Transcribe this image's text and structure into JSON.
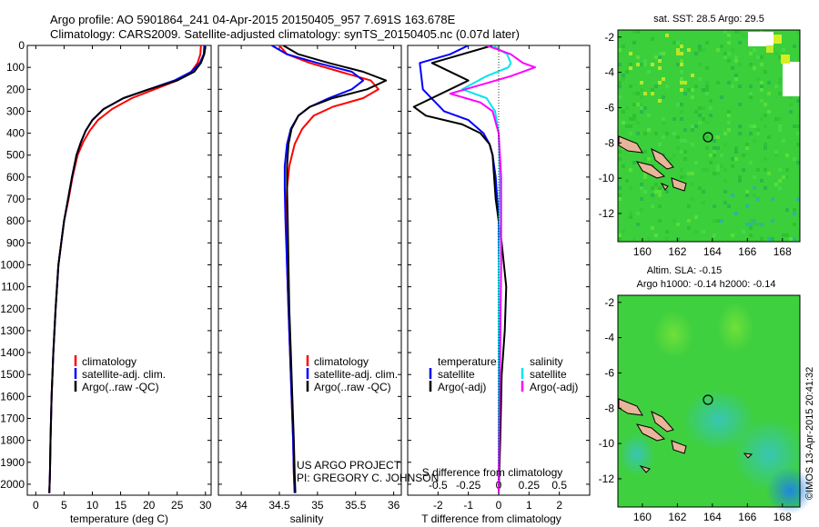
{
  "header": {
    "line1": "Argo profile: AO 5901864_241 04-Apr-2015 20150405_957 7.691S 163.678E",
    "line2": "Climatology: CARS2009. Satellite-adjusted climatology: synTS_20150405.nc (0.07d later)"
  },
  "credit": {
    "line1": "US ARGO PROJECT",
    "line2": "PI: GREGORY C. JOHNSON"
  },
  "imos_stamp": "©IMOS 13-Apr-2015 20:41:32",
  "colors": {
    "climatology": "#ff0000",
    "satellite": "#0000ff",
    "argo": "#000000",
    "sal_satellite": "#00e5ee",
    "sal_argo": "#ff00ff",
    "map_green": "#3bd23b",
    "land": "#e8b49a"
  },
  "chart_data": [
    {
      "type": "line",
      "id": "temperature",
      "xlabel": "temperature (deg C)",
      "ylabel": "",
      "xlim": [
        -1.5,
        31
      ],
      "ylim": [
        2050,
        0
      ],
      "xticks": [
        0,
        5,
        10,
        15,
        20,
        25,
        30
      ],
      "yticks": [
        0,
        100,
        200,
        300,
        400,
        500,
        600,
        700,
        800,
        900,
        1000,
        1100,
        1200,
        1300,
        1400,
        1500,
        1600,
        1700,
        1800,
        1900,
        2000
      ],
      "legend": [
        "climatology",
        "satellite-adj. clim.",
        "Argo(..raw -QC)"
      ],
      "series": [
        {
          "name": "climatology",
          "color": "#ff0000",
          "x": [
            29.2,
            29.1,
            28.6,
            27.5,
            25.0,
            21.0,
            17.0,
            13.5,
            11.0,
            9.5,
            8.4,
            7.4,
            6.5,
            5.8,
            5.0,
            4.5,
            4.0,
            3.5,
            3.1,
            2.8,
            2.6,
            2.5,
            2.4
          ],
          "y": [
            0,
            40,
            80,
            120,
            160,
            200,
            240,
            290,
            340,
            390,
            440,
            500,
            600,
            700,
            800,
            900,
            1000,
            1200,
            1400,
            1600,
            1800,
            1950,
            2040
          ]
        },
        {
          "name": "satellite-adj. clim.",
          "color": "#0000ff",
          "x": [
            29.8,
            29.7,
            29.0,
            27.5,
            24.5,
            20.0,
            15.5,
            12.0,
            10.0,
            8.8,
            8.0,
            7.2,
            6.4,
            5.7,
            5.0,
            4.5,
            4.0,
            3.5,
            3.1,
            2.8,
            2.6,
            2.5,
            2.4
          ],
          "y": [
            0,
            40,
            80,
            120,
            160,
            200,
            240,
            290,
            340,
            390,
            440,
            500,
            600,
            700,
            800,
            900,
            1000,
            1200,
            1400,
            1600,
            1800,
            1950,
            2040
          ]
        },
        {
          "name": "Argo(..raw -QC)",
          "color": "#000000",
          "x": [
            30.0,
            29.8,
            29.2,
            28.0,
            25.0,
            20.0,
            15.5,
            12.0,
            10.0,
            8.8,
            8.0,
            7.2,
            6.4,
            5.7,
            5.0,
            4.5,
            4.0,
            3.5,
            3.1,
            2.8,
            2.6,
            2.5,
            2.4
          ],
          "y": [
            5,
            40,
            80,
            120,
            160,
            200,
            240,
            290,
            340,
            390,
            440,
            500,
            600,
            700,
            800,
            900,
            1000,
            1200,
            1400,
            1600,
            1800,
            1950,
            2040
          ]
        }
      ]
    },
    {
      "type": "line",
      "id": "salinity",
      "xlabel": "salinity",
      "xlim": [
        33.7,
        36.1
      ],
      "ylim": [
        2050,
        0
      ],
      "xticks": [
        34,
        34.5,
        35,
        35.5,
        36
      ],
      "legend": [
        "climatology",
        "satellite-adj. clim.",
        "Argo(..raw -QC)"
      ],
      "series": [
        {
          "name": "climatology",
          "color": "#ff0000",
          "x": [
            34.5,
            34.6,
            34.9,
            35.3,
            35.7,
            35.8,
            35.6,
            35.2,
            34.95,
            34.8,
            34.7,
            34.63,
            34.6,
            34.59,
            34.6,
            34.62,
            34.64,
            34.66,
            34.68,
            34.69,
            34.7
          ],
          "y": [
            0,
            40,
            80,
            120,
            160,
            200,
            240,
            280,
            320,
            380,
            450,
            550,
            650,
            800,
            1000,
            1200,
            1400,
            1600,
            1800,
            1950,
            2040
          ]
        },
        {
          "name": "satellite-adj. clim.",
          "color": "#0000ff",
          "x": [
            34.4,
            34.6,
            35.0,
            35.45,
            35.6,
            35.45,
            35.15,
            34.9,
            34.75,
            34.65,
            34.6,
            34.57,
            34.57,
            34.58,
            34.6,
            34.62,
            34.64,
            34.66,
            34.68,
            34.69,
            34.7
          ],
          "y": [
            0,
            40,
            80,
            120,
            160,
            200,
            240,
            280,
            320,
            380,
            450,
            550,
            650,
            800,
            1000,
            1200,
            1400,
            1600,
            1800,
            1950,
            2040
          ]
        },
        {
          "name": "Argo(..raw -QC)",
          "color": "#000000",
          "x": [
            34.55,
            34.75,
            35.15,
            35.6,
            35.9,
            35.65,
            35.2,
            34.9,
            34.75,
            34.66,
            34.62,
            34.6,
            34.6,
            34.61,
            34.62,
            34.63,
            34.65,
            34.67,
            34.69,
            34.7,
            34.71
          ],
          "y": [
            0,
            40,
            80,
            120,
            160,
            200,
            240,
            280,
            320,
            380,
            450,
            550,
            650,
            800,
            1000,
            1200,
            1400,
            1600,
            1800,
            1950,
            2040
          ]
        }
      ]
    },
    {
      "type": "line",
      "id": "difference",
      "xlabel": "T difference from climatology",
      "xlabel_top": "S difference from climatology",
      "xlim_T": [
        -3.0,
        3.0
      ],
      "xticks_T": [
        -2,
        -1,
        0,
        1,
        2
      ],
      "xticks_S": [
        "-0.5",
        "-0.25",
        "0",
        "0.25",
        "0.5"
      ],
      "xlim_S": [
        -0.75,
        0.75
      ],
      "ylim": [
        2050,
        0
      ],
      "legend_temperature": [
        "satellite",
        "Argo(-adj)"
      ],
      "legend_salinity": [
        "satellite",
        "Argo(-adj)"
      ],
      "legend_headers": [
        "temperature",
        "salinity"
      ],
      "series": [
        {
          "name": "satellite",
          "quantity": "temperature",
          "color": "#0000ff",
          "x": [
            -1.0,
            -1.6,
            -2.6,
            -2.5,
            -1.8,
            -1.0,
            -0.5,
            -0.3,
            -0.2,
            -0.1,
            0.0,
            0.0,
            0.0,
            0.0,
            0.0,
            0.0,
            0.0
          ],
          "y": [
            0,
            40,
            80,
            200,
            300,
            340,
            400,
            450,
            500,
            600,
            800,
            1000,
            1200,
            1400,
            1600,
            1800,
            2040
          ]
        },
        {
          "name": "Argo(-adj)",
          "quantity": "temperature",
          "color": "#000000",
          "x": [
            -0.2,
            -1.2,
            -2.2,
            -1.0,
            -2.8,
            -2.4,
            -1.2,
            -0.6,
            -0.3,
            -0.2,
            -0.1,
            0.1,
            0.25,
            0.2,
            0.1,
            0.05,
            0.0
          ],
          "y": [
            0,
            40,
            80,
            160,
            280,
            320,
            360,
            400,
            450,
            500,
            700,
            900,
            1100,
            1300,
            1500,
            1800,
            2040
          ]
        },
        {
          "name": "satellite",
          "quantity": "salinity",
          "color": "#00e5ee",
          "x": [
            -0.05,
            0.07,
            0.1,
            0.08,
            -0.1,
            -0.3,
            -0.1,
            -0.03,
            0.0,
            0.01,
            0.0,
            0.0,
            0.0
          ],
          "y": [
            0,
            40,
            80,
            100,
            140,
            200,
            240,
            300,
            400,
            600,
            1000,
            1500,
            2040
          ]
        },
        {
          "name": "Argo(-adj)",
          "quantity": "salinity",
          "color": "#ff00ff",
          "x": [
            -0.1,
            0.1,
            0.2,
            0.3,
            0.1,
            -0.4,
            -0.15,
            -0.05,
            0.0,
            0.02,
            0.02,
            0.01,
            0.0
          ],
          "y": [
            0,
            40,
            80,
            100,
            140,
            220,
            260,
            300,
            400,
            600,
            1000,
            1500,
            2040
          ]
        }
      ]
    }
  ],
  "maps": {
    "sst": {
      "title": "sat. SST: 28.5 Argo: 29.5",
      "xticks": [
        "160",
        "162",
        "164",
        "166",
        "168"
      ],
      "yticks": [
        "-2",
        "-4",
        "-6",
        "-8",
        "-10",
        "-12"
      ]
    },
    "sla": {
      "title1": "Altim. SLA: -0.15",
      "title2": "Argo h1000: -0.14 h2000: -0.14",
      "xticks": [
        "160",
        "162",
        "164",
        "166",
        "168"
      ],
      "yticks": [
        "-2",
        "-4",
        "-6",
        "-8",
        "-10",
        "-12"
      ]
    }
  },
  "depth_ticks": [
    "0",
    "100",
    "200",
    "300",
    "400",
    "500",
    "600",
    "700",
    "800",
    "900",
    "1000",
    "1100",
    "1200",
    "1300",
    "1400",
    "1500",
    "1600",
    "1700",
    "1800",
    "1900",
    "2000"
  ]
}
